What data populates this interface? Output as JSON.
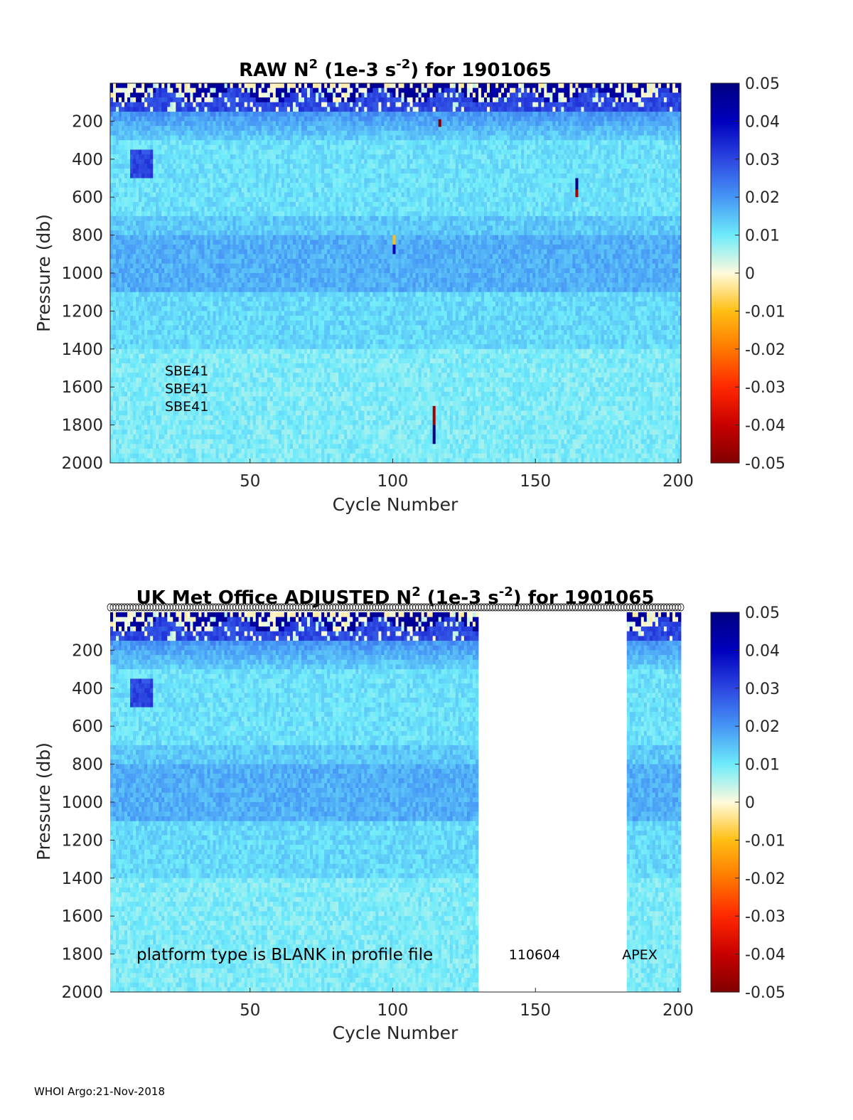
{
  "footer": "WHOI Argo:21-Nov-2018",
  "colorbar": {
    "ticks": [
      "0.05",
      "0.04",
      "0.03",
      "0.02",
      "0.01",
      "0",
      "-0.01",
      "-0.02",
      "-0.03",
      "-0.04",
      "-0.05"
    ],
    "values": [
      0.05,
      0.04,
      0.03,
      0.02,
      0.01,
      0,
      -0.01,
      -0.02,
      -0.03,
      -0.04,
      -0.05
    ]
  },
  "chart_data": [
    {
      "type": "heatmap",
      "title_parts": [
        "RAW N",
        "2",
        " (1e-3 s",
        "-2",
        ") for 1901065"
      ],
      "xlabel": "Cycle Number",
      "ylabel": "Pressure (db)",
      "xlim": [
        1,
        201
      ],
      "ylim": [
        2000,
        0
      ],
      "y_reversed": true,
      "xticks": [
        50,
        100,
        150,
        200
      ],
      "yticks": [
        200,
        400,
        600,
        800,
        1000,
        1200,
        1400,
        1600,
        1800,
        2000
      ],
      "clim": [
        -0.05,
        0.05
      ],
      "colormap": "jet-like with white at 0",
      "cycles_with_data": [
        [
          1,
          201
        ]
      ],
      "annotations": [
        "SBE41",
        "SBE41",
        "SBE41"
      ],
      "features": [
        {
          "desc": "strong positive N2 near surface",
          "cycles": [
            1,
            201
          ],
          "pressure": [
            0,
            150
          ],
          "value": 0.045
        },
        {
          "desc": "elevated N2 band",
          "cycles": [
            1,
            201
          ],
          "pressure": [
            780,
            1100
          ],
          "value": 0.018
        },
        {
          "desc": "elevated patch",
          "cycles": [
            8,
            15
          ],
          "pressure": [
            350,
            480
          ],
          "value": 0.03
        },
        {
          "desc": "spike",
          "cycle": 114,
          "pressure": [
            1700,
            1800
          ],
          "value": -0.045
        },
        {
          "desc": "spike",
          "cycle": 114,
          "pressure": [
            1800,
            1900
          ],
          "value": 0.05
        },
        {
          "desc": "spike",
          "cycle": 164,
          "pressure": [
            500,
            560
          ],
          "value": 0.05
        },
        {
          "desc": "spike",
          "cycle": 164,
          "pressure": [
            560,
            600
          ],
          "value": -0.045
        },
        {
          "desc": "spike",
          "cycle": 100,
          "pressure": [
            800,
            850
          ],
          "value": -0.01
        },
        {
          "desc": "spike",
          "cycle": 100,
          "pressure": [
            850,
            900
          ],
          "value": 0.04
        },
        {
          "desc": "spike",
          "cycle": 116,
          "pressure": [
            190,
            230
          ],
          "value": -0.05
        }
      ]
    },
    {
      "type": "heatmap",
      "title_parts": [
        "UK Met Office  ADJUSTED N",
        "2",
        " (1e-3 s",
        "-2",
        ") for 1901065"
      ],
      "xlabel": "Cycle Number",
      "ylabel": "Pressure (db)",
      "xlim": [
        1,
        201
      ],
      "ylim": [
        2000,
        0
      ],
      "y_reversed": true,
      "xticks": [
        50,
        100,
        150,
        200
      ],
      "yticks": [
        200,
        400,
        600,
        800,
        1000,
        1200,
        1400,
        1600,
        1800,
        2000
      ],
      "clim": [
        -0.05,
        0.05
      ],
      "colormap": "jet-like with white at 0",
      "cycles_with_data": [
        [
          1,
          130
        ],
        [
          182,
          201
        ]
      ],
      "annotations": [
        "platform type is BLANK in profile file",
        "110604",
        "APEX"
      ],
      "features": [
        {
          "desc": "strong positive N2 near surface",
          "cycles": [
            1,
            201
          ],
          "pressure": [
            0,
            150
          ],
          "value": 0.045
        },
        {
          "desc": "elevated N2 band",
          "cycles": [
            1,
            201
          ],
          "pressure": [
            780,
            1100
          ],
          "value": 0.018
        },
        {
          "desc": "elevated patch",
          "cycles": [
            8,
            15
          ],
          "pressure": [
            350,
            480
          ],
          "value": 0.03
        }
      ]
    }
  ]
}
